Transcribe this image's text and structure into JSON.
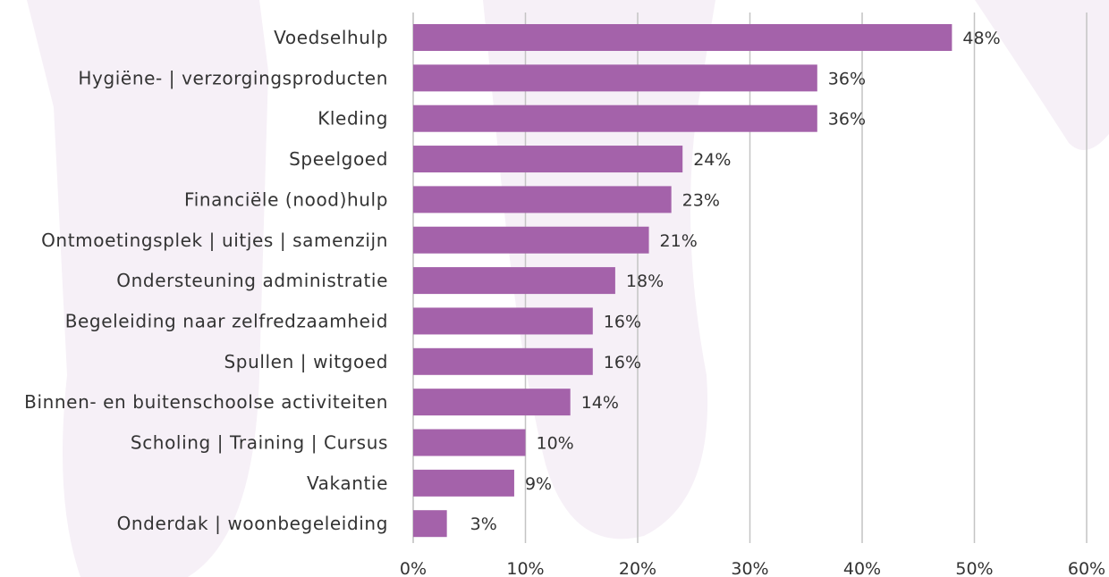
{
  "chart_data": {
    "type": "bar",
    "orientation": "horizontal",
    "title": "",
    "xlabel": "",
    "ylabel": "",
    "categories": [
      "Voedselhulp",
      "Hygiëne- | verzorgingsproducten",
      "Kleding",
      "Speelgoed",
      "Financiële (nood)hulp",
      "Ontmoetingsplek | uitjes | samenzijn",
      "Ondersteuning administratie",
      "Begeleiding naar zelfredzaamheid",
      "Spullen | witgoed",
      "Binnen- en buitenschoolse activiteiten",
      "Scholing | Training | Cursus",
      "Vakantie",
      "Onderdak | woonbegeleiding"
    ],
    "values": [
      48,
      36,
      36,
      24,
      23,
      21,
      18,
      16,
      16,
      14,
      10,
      9,
      3
    ],
    "value_labels": [
      "48%",
      "36%",
      "36%",
      "24%",
      "23%",
      "21%",
      "18%",
      "16%",
      "16%",
      "14%",
      "10%",
      "9%",
      "3%"
    ],
    "xlim": [
      0,
      60
    ],
    "xticks": [
      0,
      10,
      20,
      30,
      40,
      50,
      60
    ],
    "xtick_labels": [
      "0%",
      "10%",
      "20%",
      "30%",
      "40%",
      "50%",
      "60%"
    ],
    "grid": "vertical",
    "legend": "none",
    "bar_color": "#a462aa",
    "grid_color": "#c4c4c4",
    "watermark_color": "#f6f0f7"
  }
}
